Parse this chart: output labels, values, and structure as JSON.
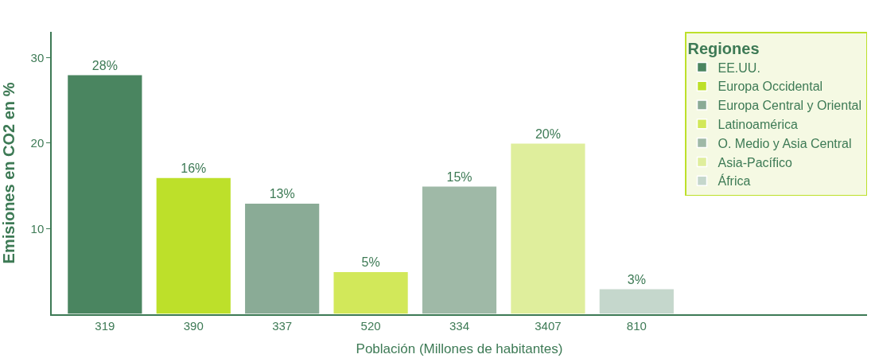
{
  "chart_data": {
    "type": "bar",
    "ylabel": "Emisiones en CO2 en %",
    "xlabel": "Población (Millones de habitantes)",
    "legend_title": "Regiones",
    "legend": "top right",
    "categories": [
      "319",
      "390",
      "337",
      "520",
      "334",
      "3407",
      "810"
    ],
    "ylim": [
      0,
      33
    ],
    "yticks": [
      10,
      20,
      30
    ],
    "series": [
      {
        "name": "EE.UU.",
        "color": "#4a8560",
        "values": [
          28,
          null,
          null,
          null,
          null,
          null,
          null
        ],
        "value_labels": [
          "28%",
          null,
          null,
          null,
          null,
          null,
          null
        ]
      },
      {
        "name": "Europa Occidental",
        "color": "#bde02a",
        "values": [
          null,
          16,
          null,
          null,
          null,
          null,
          null
        ],
        "value_labels": [
          null,
          "16%",
          null,
          null,
          null,
          null,
          null
        ]
      },
      {
        "name": "Europa Central y Oriental",
        "color": "#8aab96",
        "values": [
          null,
          null,
          13,
          null,
          null,
          null,
          null
        ],
        "value_labels": [
          null,
          null,
          "13%",
          null,
          null,
          null,
          null
        ]
      },
      {
        "name": "Latinoamérica",
        "color": "#d2e85a",
        "values": [
          null,
          null,
          null,
          5,
          null,
          null,
          null
        ],
        "value_labels": [
          null,
          null,
          null,
          "5%",
          null,
          null,
          null
        ]
      },
      {
        "name": "O. Medio y Asia Central",
        "color": "#9fb9a7",
        "values": [
          null,
          null,
          null,
          null,
          15,
          null,
          null
        ],
        "value_labels": [
          null,
          null,
          null,
          null,
          "15%",
          null,
          null
        ]
      },
      {
        "name": "Asia-Pacífico",
        "color": "#dfee9c",
        "values": [
          null,
          null,
          null,
          null,
          null,
          20,
          null
        ],
        "value_labels": [
          null,
          null,
          null,
          null,
          null,
          "20%",
          null
        ]
      },
      {
        "name": "África",
        "color": "#c5d7cc",
        "values": [
          null,
          null,
          null,
          null,
          null,
          null,
          3
        ],
        "value_labels": [
          null,
          null,
          null,
          null,
          null,
          null,
          "3%"
        ]
      }
    ]
  }
}
